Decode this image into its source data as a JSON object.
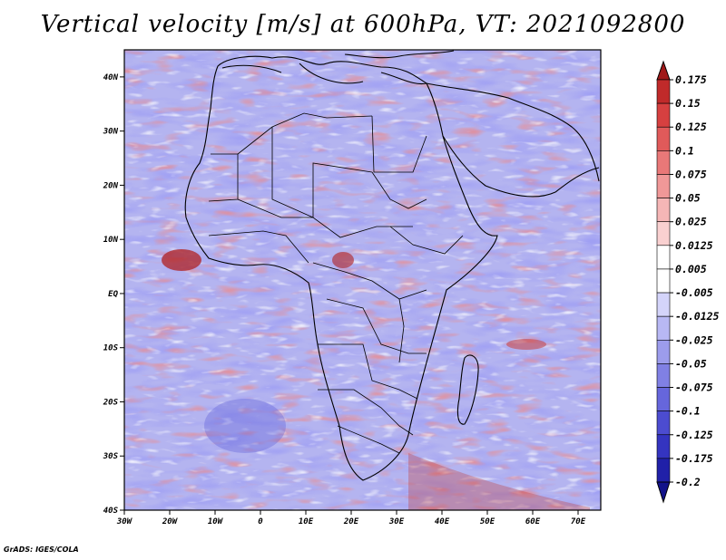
{
  "title": "Vertical velocity [m/s] at 600hPa, VT: 2021092800",
  "credit": "GrADS: IGES/COLA",
  "map": {
    "region": "Africa",
    "lon_range": [
      -30,
      75
    ],
    "lat_range": [
      -40,
      45
    ],
    "lon_ticks": [
      "30W",
      "20W",
      "10W",
      "0",
      "10E",
      "20E",
      "30E",
      "40E",
      "50E",
      "60E",
      "70E"
    ],
    "lat_ticks": [
      "40N",
      "30N",
      "20N",
      "10N",
      "EQ",
      "10S",
      "20S",
      "30S",
      "40S"
    ]
  },
  "colorbar": {
    "labels": [
      "0.175",
      "0.15",
      "0.125",
      "0.1",
      "0.075",
      "0.05",
      "0.025",
      "0.0125",
      "0.005",
      "-0.005",
      "-0.0125",
      "-0.025",
      "-0.05",
      "-0.075",
      "-0.1",
      "-0.125",
      "-0.175",
      "-0.2"
    ],
    "colors": [
      "#a01818",
      "#c02a2a",
      "#d64040",
      "#e05a5a",
      "#e97878",
      "#f09898",
      "#f5b6b6",
      "#f9d0d0",
      "#ffffff",
      "#ffffff",
      "#d4d4fa",
      "#b8b8f4",
      "#9c9cec",
      "#8080e4",
      "#6666dc",
      "#4c4cd0",
      "#3434c0",
      "#2020a8",
      "#12128a"
    ]
  }
}
